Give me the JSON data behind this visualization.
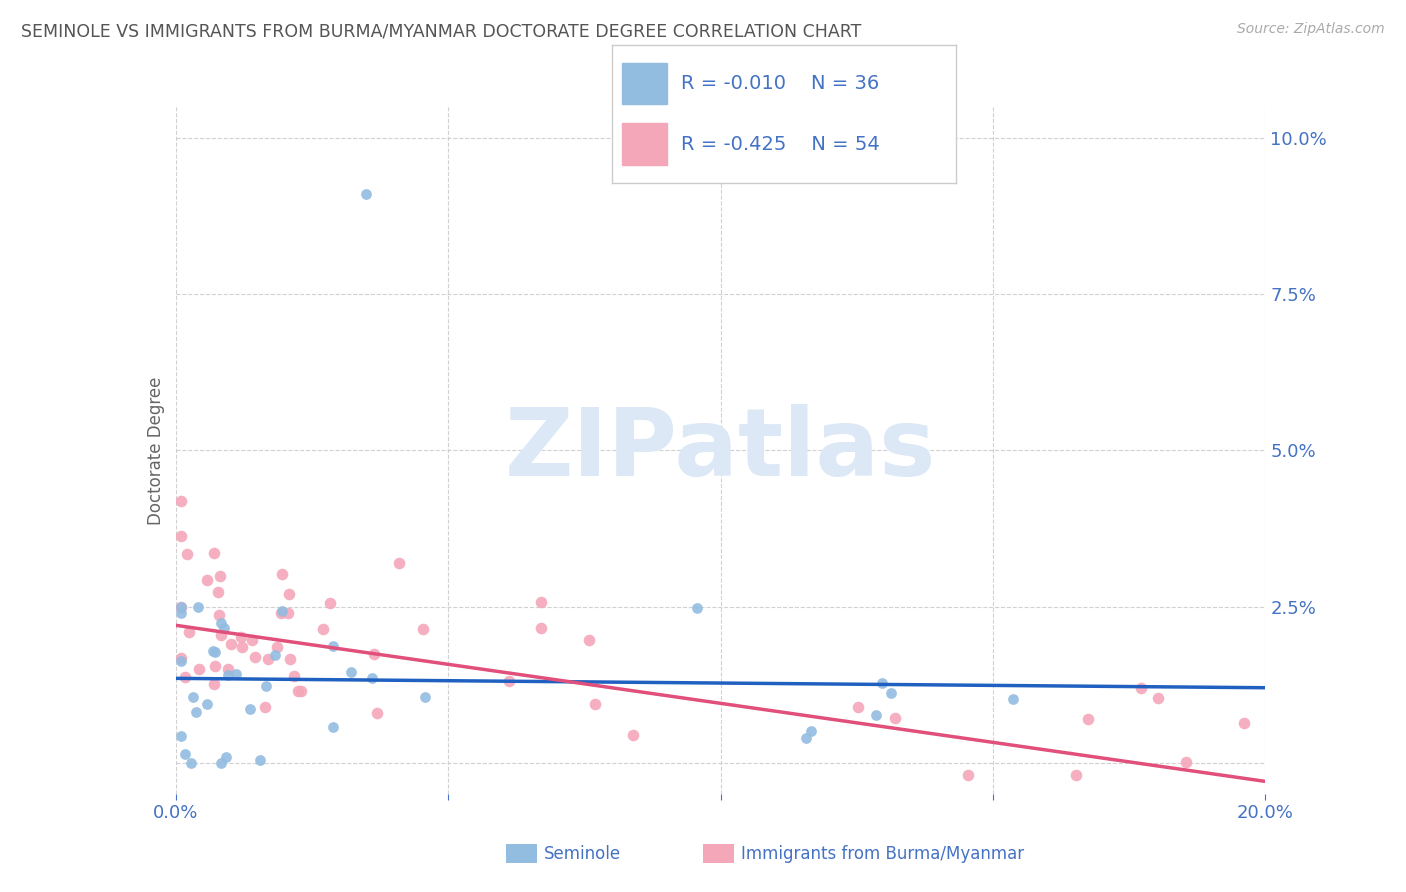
{
  "title": "SEMINOLE VS IMMIGRANTS FROM BURMA/MYANMAR DOCTORATE DEGREE CORRELATION CHART",
  "source": "Source: ZipAtlas.com",
  "ylabel": "Doctorate Degree",
  "xlim": [
    0.0,
    0.2
  ],
  "ylim": [
    -0.005,
    0.105
  ],
  "xticks": [
    0.0,
    0.05,
    0.1,
    0.15,
    0.2
  ],
  "xticklabels": [
    "0.0%",
    "",
    "",
    "",
    "20.0%"
  ],
  "yticks": [
    0.0,
    0.025,
    0.05,
    0.075,
    0.1
  ],
  "yticklabels": [
    "",
    "2.5%",
    "5.0%",
    "7.5%",
    "10.0%"
  ],
  "grid_color": "#cccccc",
  "background_color": "#ffffff",
  "title_color": "#555555",
  "source_color": "#aaaaaa",
  "axis_color": "#4472c4",
  "sem_color": "#92bce0",
  "imm_color": "#f4a7b9",
  "sem_line_color": "#2060c0",
  "imm_line_color": "#e0507a",
  "sem_R": -0.01,
  "sem_N": 36,
  "imm_R": -0.425,
  "imm_N": 54,
  "watermark_color": "#dce8f5",
  "legend_text_color": "#4472c4",
  "sem_trend_y": [
    0.0135,
    0.012
  ],
  "imm_trend_y": [
    0.022,
    -0.003
  ]
}
